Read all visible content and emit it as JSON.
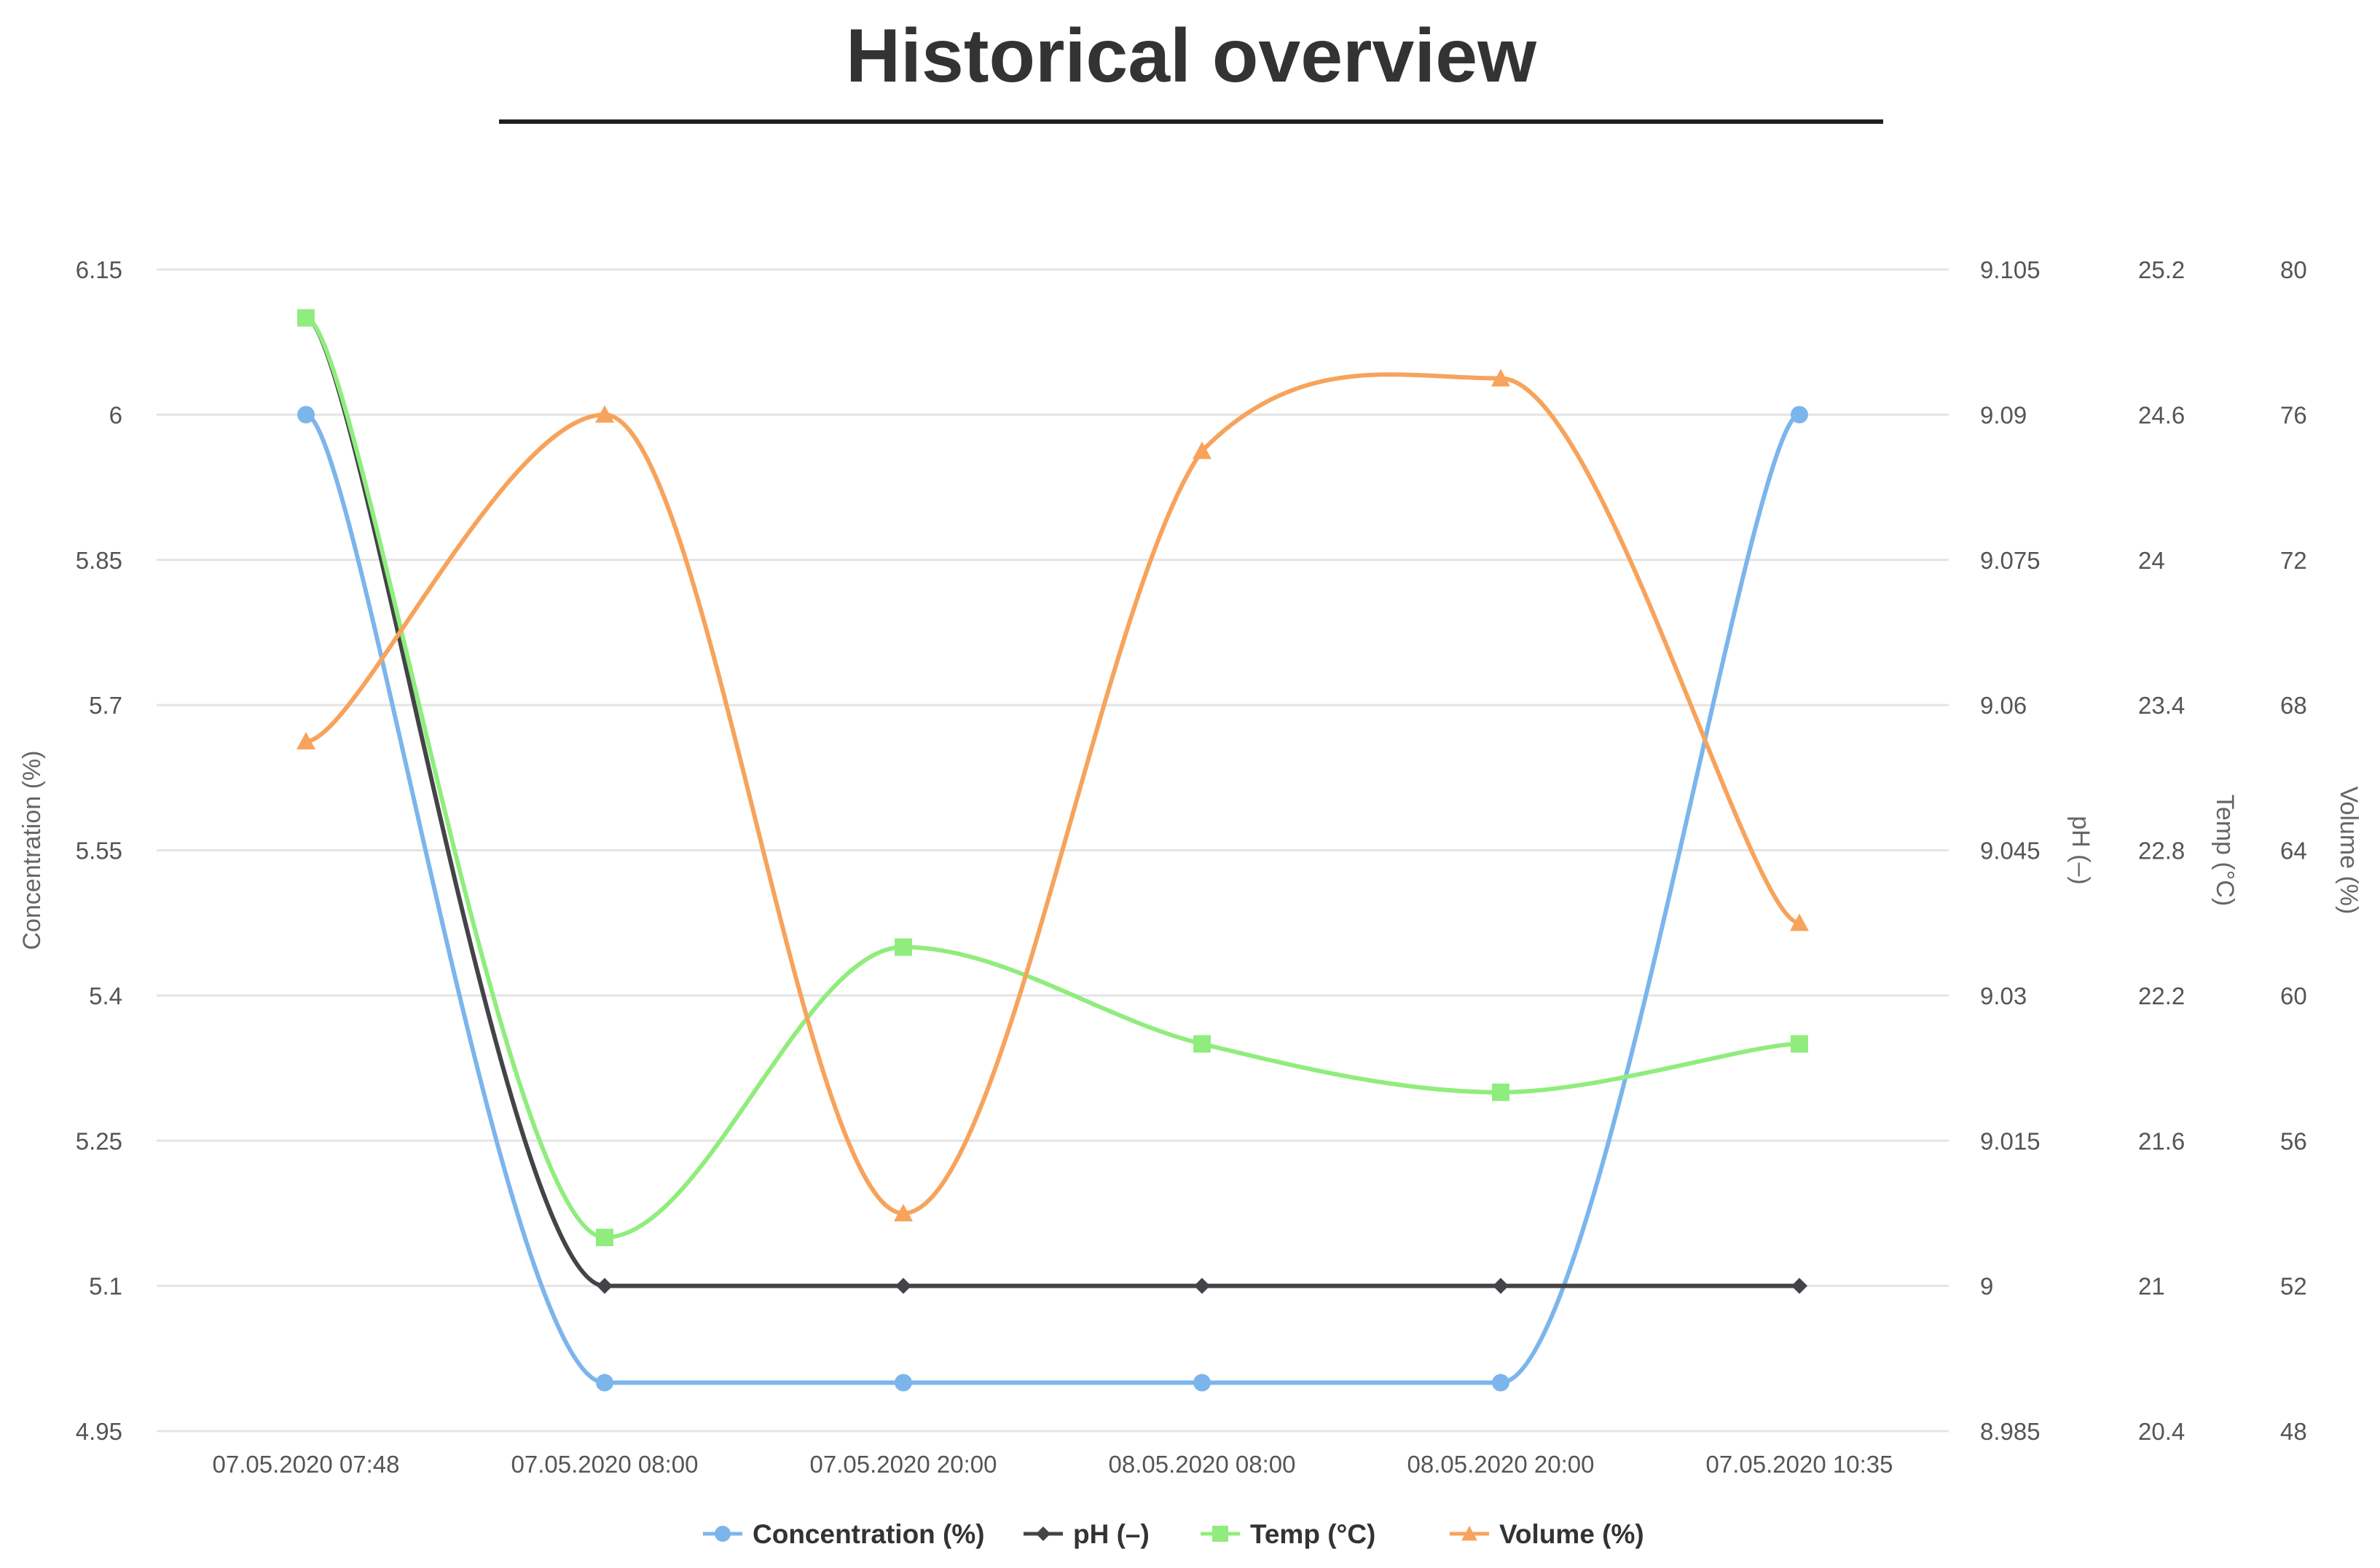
{
  "chart_data": {
    "type": "line",
    "title": "Historical overview",
    "categories": [
      "07.05.2020 07:48",
      "07.05.2020 08:00",
      "07.05.2020 20:00",
      "08.05.2020 08:00",
      "08.05.2020 20:00",
      "07.05.2020 10:35"
    ],
    "axes": [
      {
        "id": "concentration",
        "label": "Concentration (%)",
        "position": "left",
        "min": 4.95,
        "max": 6.15,
        "ticks": [
          "4.95",
          "5.1",
          "5.25",
          "5.4",
          "5.55",
          "5.7",
          "5.85",
          "6",
          "6.15"
        ]
      },
      {
        "id": "ph",
        "label": "pH (–)",
        "position": "right",
        "min": 8.985,
        "max": 9.105,
        "ticks": [
          "8.985",
          "9",
          "9.015",
          "9.03",
          "9.045",
          "9.06",
          "9.075",
          "9.09",
          "9.105"
        ]
      },
      {
        "id": "temp",
        "label": "Temp (°C)",
        "position": "right",
        "min": 20.4,
        "max": 25.2,
        "ticks": [
          "20.4",
          "21",
          "21.6",
          "22.2",
          "22.8",
          "23.4",
          "24",
          "24.6",
          "25.2"
        ]
      },
      {
        "id": "volume",
        "label": "Volume (%)",
        "position": "right",
        "min": 48,
        "max": 80,
        "ticks": [
          "48",
          "52",
          "56",
          "60",
          "64",
          "68",
          "72",
          "76",
          "80"
        ]
      }
    ],
    "series": [
      {
        "name": "Concentration (%)",
        "axis": "concentration",
        "color": "#7cb5ec",
        "marker": "circle",
        "values": [
          6.0,
          5.0,
          5.0,
          5.0,
          5.0,
          6.0
        ]
      },
      {
        "name": "pH (–)",
        "axis": "ph",
        "color": "#434348",
        "marker": "diamond",
        "values": [
          9.1,
          9.0,
          9.0,
          9.0,
          9.0,
          9.0
        ]
      },
      {
        "name": "Temp (°C)",
        "axis": "temp",
        "color": "#90ed7d",
        "marker": "square",
        "values": [
          25.0,
          21.2,
          22.4,
          22.0,
          21.8,
          22.0
        ]
      },
      {
        "name": "Volume (%)",
        "axis": "volume",
        "color": "#f7a35c",
        "marker": "triangle",
        "values": [
          67,
          76,
          54,
          75,
          77,
          62
        ]
      }
    ],
    "grid": true,
    "legend": "bottom-center"
  }
}
